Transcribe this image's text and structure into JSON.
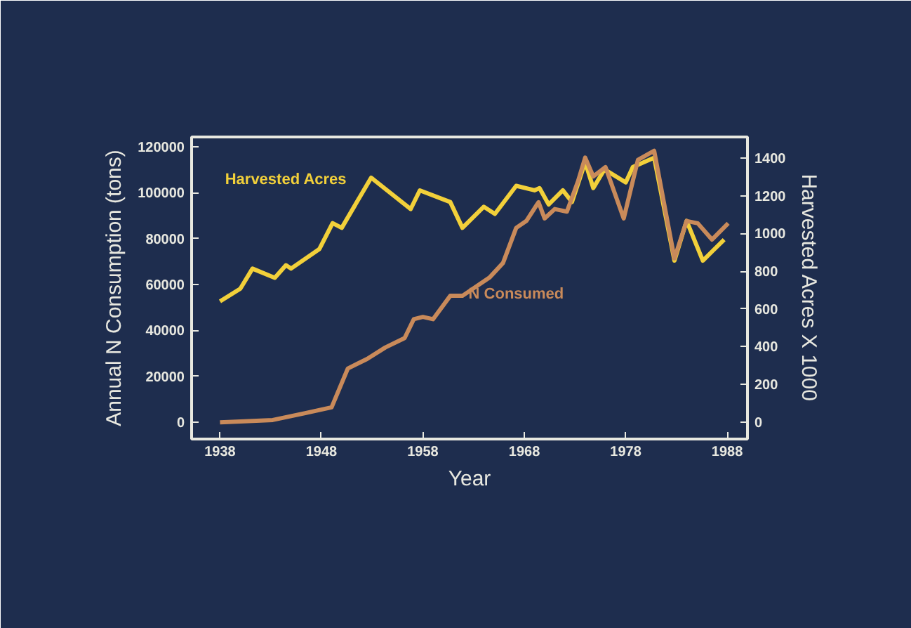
{
  "chart_data": {
    "type": "line",
    "xlabel": "Year",
    "ylabel": "Annual N Consumption (tons)",
    "y2label": "Harvested Acres X 1000",
    "xlim": [
      1935.2,
      1990
    ],
    "xticks": [
      1938,
      1948,
      1958,
      1968,
      1978,
      1988
    ],
    "ylim": [
      -7300,
      124300
    ],
    "yticks": [
      0,
      20000,
      40000,
      60000,
      80000,
      100000,
      120000
    ],
    "y2lim": [
      -90,
      1512
    ],
    "y2ticks": [
      0,
      200,
      400,
      600,
      800,
      1000,
      1200,
      1400
    ],
    "grid": false,
    "marker": "none",
    "line_style": "solid",
    "series": [
      {
        "name": "Harvested Acres",
        "color": "#f2d03a",
        "axis": "y2",
        "x": [
          1938,
          1940,
          1941.2,
          1943.4,
          1944.5,
          1945,
          1947.8,
          1949.1,
          1950,
          1952.9,
          1956.8,
          1957.7,
          1960.7,
          1961.9,
          1964,
          1965.1,
          1967.2,
          1969,
          1969.5,
          1970.4,
          1971.8,
          1972.7,
          1974,
          1974.8,
          1975.9,
          1978,
          1978.7,
          1980.8,
          1982.8,
          1984,
          1985.6,
          1987.7
        ],
        "values": [
          640,
          707,
          814,
          765,
          832,
          814,
          918,
          1055,
          1030,
          1296,
          1130,
          1229,
          1167,
          1030,
          1142,
          1104,
          1253,
          1229,
          1241,
          1154,
          1229,
          1167,
          1378,
          1241,
          1340,
          1271,
          1353,
          1402,
          856,
          1067,
          856,
          968
        ]
      },
      {
        "name": "N Consumed",
        "color": "#c98a5a",
        "x": [
          1938,
          1943.2,
          1946.4,
          1949,
          1950.6,
          1952.5,
          1954.3,
          1956.2,
          1957.1,
          1958,
          1959,
          1960.7,
          1961.9,
          1964.6,
          1965.9,
          1967.2,
          1968.2,
          1969.4,
          1970,
          1971,
          1972.2,
          1973.3,
          1974,
          1974.8,
          1976,
          1977.8,
          1979.2,
          1980.8,
          1982.8,
          1984,
          1985.1,
          1986.5,
          1988.1
        ],
        "values": [
          0,
          1000,
          4000,
          6500,
          23400,
          27600,
          32600,
          36700,
          44900,
          45900,
          44900,
          55100,
          55100,
          63200,
          69400,
          84700,
          87700,
          95900,
          88800,
          92900,
          91800,
          105100,
          115300,
          107100,
          111200,
          88800,
          114300,
          118300,
          71400,
          87700,
          86700,
          79600,
          86700
        ]
      }
    ]
  }
}
